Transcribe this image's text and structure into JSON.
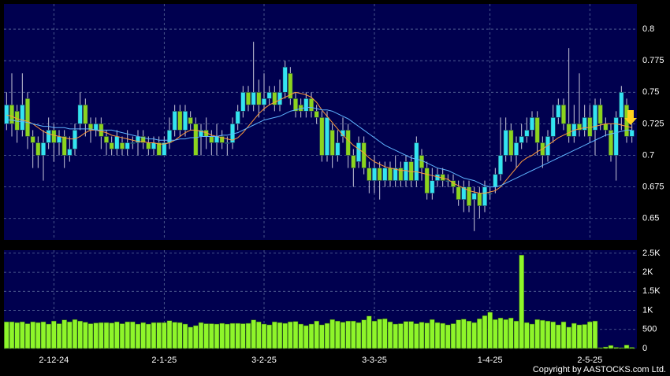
{
  "chart_data": [
    {
      "type": "candlestick",
      "categories": [
        null,
        null,
        null,
        null,
        null,
        null,
        null,
        null,
        null,
        "2-12-24",
        null,
        null,
        null,
        null,
        null,
        null,
        null,
        null,
        null,
        null,
        null,
        null,
        null,
        null,
        null,
        null,
        null,
        null,
        null,
        null,
        "2-1-25",
        null,
        null,
        null,
        null,
        null,
        null,
        null,
        null,
        null,
        null,
        null,
        null,
        null,
        null,
        null,
        null,
        null,
        null,
        "3-2-25",
        null,
        null,
        null,
        null,
        null,
        null,
        null,
        null,
        null,
        null,
        null,
        null,
        null,
        null,
        null,
        null,
        null,
        null,
        null,
        null,
        "3-3-25",
        null,
        null,
        null,
        null,
        null,
        null,
        null,
        null,
        null,
        null,
        null,
        null,
        null,
        null,
        null,
        null,
        null,
        null,
        null,
        null,
        null,
        "1-4-25",
        null,
        null,
        null,
        null,
        null,
        null,
        null,
        null,
        null,
        null,
        null,
        null,
        null,
        null,
        null,
        null,
        null,
        null,
        "2-5-25",
        null,
        null,
        null,
        null,
        null,
        null,
        null,
        null
      ],
      "open": [
        0.725,
        0.74,
        0.735,
        0.72,
        0.745,
        0.715,
        0.71,
        0.7,
        0.71,
        0.72,
        0.71,
        0.715,
        0.7,
        0.705,
        0.725,
        0.74,
        0.725,
        0.72,
        0.725,
        0.715,
        0.71,
        0.705,
        0.71,
        0.705,
        0.71,
        0.71,
        0.715,
        0.71,
        0.705,
        0.71,
        0.7,
        0.71,
        0.72,
        0.735,
        0.72,
        0.73,
        0.725,
        0.715,
        0.72,
        0.715,
        0.71,
        0.715,
        0.71,
        0.71,
        0.725,
        0.735,
        0.75,
        0.74,
        0.75,
        0.74,
        0.745,
        0.75,
        0.74,
        0.75,
        0.765,
        0.745,
        0.74,
        0.735,
        0.745,
        0.735,
        0.73,
        0.7,
        0.72,
        0.7,
        0.715,
        0.72,
        0.7,
        0.695,
        0.71,
        0.69,
        0.68,
        0.69,
        0.68,
        0.69,
        0.68,
        0.69,
        0.68,
        0.695,
        0.68,
        0.7,
        0.69,
        0.67,
        0.68,
        0.685,
        0.68,
        0.68,
        0.675,
        0.665,
        0.675,
        0.665,
        0.67,
        0.66,
        0.67,
        0.675,
        0.685,
        0.7,
        0.72,
        0.7,
        0.71,
        0.715,
        0.72,
        0.73,
        0.71,
        0.7,
        0.715,
        0.73,
        0.74,
        0.725,
        0.715,
        0.725,
        0.72,
        0.73,
        0.72,
        0.74,
        0.725,
        0.72,
        0.7,
        0.73,
        0.74,
        0.715
      ],
      "high": [
        0.75,
        0.765,
        0.74,
        0.765,
        0.75,
        0.72,
        0.715,
        0.72,
        0.73,
        0.725,
        0.72,
        0.72,
        0.715,
        0.725,
        0.75,
        0.745,
        0.73,
        0.73,
        0.73,
        0.72,
        0.715,
        0.72,
        0.715,
        0.72,
        0.715,
        0.72,
        0.72,
        0.715,
        0.715,
        0.715,
        0.715,
        0.73,
        0.74,
        0.74,
        0.74,
        0.735,
        0.73,
        0.725,
        0.73,
        0.72,
        0.725,
        0.72,
        0.715,
        0.73,
        0.74,
        0.755,
        0.755,
        0.79,
        0.76,
        0.765,
        0.755,
        0.755,
        0.76,
        0.775,
        0.77,
        0.75,
        0.745,
        0.75,
        0.75,
        0.74,
        0.735,
        0.735,
        0.725,
        0.72,
        0.73,
        0.725,
        0.705,
        0.715,
        0.715,
        0.695,
        0.7,
        0.695,
        0.695,
        0.695,
        0.7,
        0.695,
        0.7,
        0.7,
        0.715,
        0.705,
        0.695,
        0.69,
        0.69,
        0.69,
        0.685,
        0.685,
        0.68,
        0.68,
        0.68,
        0.675,
        0.675,
        0.68,
        0.675,
        0.69,
        0.73,
        0.73,
        0.725,
        0.715,
        0.725,
        0.73,
        0.735,
        0.735,
        0.715,
        0.72,
        0.74,
        0.745,
        0.745,
        0.785,
        0.74,
        0.765,
        0.74,
        0.74,
        0.745,
        0.745,
        0.73,
        0.725,
        0.735,
        0.755,
        0.745,
        0.725
      ],
      "low": [
        0.72,
        0.715,
        0.71,
        0.715,
        0.705,
        0.69,
        0.69,
        0.68,
        0.705,
        0.695,
        0.7,
        0.69,
        0.695,
        0.7,
        0.72,
        0.715,
        0.71,
        0.715,
        0.705,
        0.7,
        0.7,
        0.7,
        0.7,
        0.7,
        0.705,
        0.7,
        0.705,
        0.7,
        0.7,
        0.7,
        0.7,
        0.705,
        0.715,
        0.715,
        0.715,
        0.72,
        0.7,
        0.7,
        0.705,
        0.7,
        0.7,
        0.705,
        0.7,
        0.705,
        0.72,
        0.73,
        0.735,
        0.735,
        0.73,
        0.735,
        0.74,
        0.735,
        0.735,
        0.745,
        0.74,
        0.73,
        0.73,
        0.73,
        0.73,
        0.725,
        0.695,
        0.695,
        0.69,
        0.695,
        0.71,
        0.69,
        0.675,
        0.69,
        0.685,
        0.67,
        0.67,
        0.665,
        0.675,
        0.675,
        0.675,
        0.675,
        0.675,
        0.675,
        0.675,
        0.68,
        0.665,
        0.665,
        0.675,
        0.675,
        0.675,
        0.67,
        0.66,
        0.655,
        0.655,
        0.64,
        0.65,
        0.655,
        0.665,
        0.67,
        0.68,
        0.695,
        0.695,
        0.69,
        0.705,
        0.71,
        0.715,
        0.7,
        0.69,
        0.695,
        0.71,
        0.725,
        0.72,
        0.71,
        0.71,
        0.715,
        0.715,
        0.71,
        0.7,
        0.72,
        0.715,
        0.695,
        0.68,
        0.72,
        0.71,
        0.71
      ],
      "close": [
        0.74,
        0.725,
        0.72,
        0.74,
        0.715,
        0.71,
        0.7,
        0.71,
        0.72,
        0.71,
        0.715,
        0.7,
        0.705,
        0.72,
        0.74,
        0.725,
        0.72,
        0.725,
        0.715,
        0.71,
        0.705,
        0.715,
        0.705,
        0.71,
        0.71,
        0.715,
        0.71,
        0.705,
        0.71,
        0.7,
        0.71,
        0.72,
        0.735,
        0.72,
        0.735,
        0.725,
        0.7,
        0.72,
        0.715,
        0.71,
        0.715,
        0.71,
        0.71,
        0.725,
        0.735,
        0.75,
        0.74,
        0.75,
        0.74,
        0.745,
        0.75,
        0.74,
        0.75,
        0.77,
        0.745,
        0.735,
        0.735,
        0.745,
        0.735,
        0.73,
        0.7,
        0.73,
        0.7,
        0.71,
        0.72,
        0.7,
        0.69,
        0.71,
        0.69,
        0.68,
        0.69,
        0.68,
        0.69,
        0.68,
        0.69,
        0.68,
        0.695,
        0.68,
        0.71,
        0.69,
        0.67,
        0.68,
        0.685,
        0.68,
        0.68,
        0.675,
        0.665,
        0.675,
        0.66,
        0.67,
        0.66,
        0.675,
        0.67,
        0.685,
        0.7,
        0.72,
        0.7,
        0.71,
        0.715,
        0.72,
        0.73,
        0.71,
        0.7,
        0.715,
        0.73,
        0.74,
        0.725,
        0.715,
        0.725,
        0.72,
        0.73,
        0.715,
        0.74,
        0.725,
        0.72,
        0.7,
        0.73,
        0.75,
        0.715,
        0.72
      ],
      "up_color": "#33e4f2",
      "down_color": "#8cd41e",
      "lines": [
        {
          "color": "#ff9a3c",
          "values": [
            0.732,
            0.731,
            0.729,
            0.728,
            0.727,
            0.725,
            0.722,
            0.719,
            0.717,
            0.716,
            0.715,
            0.714,
            0.713,
            0.713,
            0.715,
            0.718,
            0.72,
            0.72,
            0.719,
            0.718,
            0.716,
            0.715,
            0.714,
            0.713,
            0.712,
            0.711,
            0.711,
            0.71,
            0.71,
            0.709,
            0.709,
            0.71,
            0.712,
            0.715,
            0.718,
            0.72,
            0.72,
            0.719,
            0.718,
            0.716,
            0.715,
            0.714,
            0.713,
            0.712,
            0.714,
            0.718,
            0.723,
            0.728,
            0.733,
            0.737,
            0.74,
            0.742,
            0.744,
            0.746,
            0.748,
            0.75,
            0.749,
            0.748,
            0.746,
            0.742,
            0.736,
            0.731,
            0.726,
            0.721,
            0.716,
            0.712,
            0.708,
            0.705,
            0.702,
            0.698,
            0.695,
            0.693,
            0.691,
            0.69,
            0.689,
            0.688,
            0.688,
            0.687,
            0.687,
            0.686,
            0.685,
            0.684,
            0.683,
            0.682,
            0.681,
            0.678,
            0.676,
            0.674,
            0.672,
            0.671,
            0.67,
            0.67,
            0.671,
            0.672,
            0.675,
            0.68,
            0.685,
            0.69,
            0.695,
            0.698,
            0.7,
            0.703,
            0.705,
            0.708,
            0.711,
            0.714,
            0.716,
            0.718,
            0.72,
            0.721,
            0.722,
            0.722,
            0.723,
            0.724,
            0.725,
            0.725,
            0.725,
            0.724,
            0.723,
            0.722
          ]
        },
        {
          "color": "#5fb4ff",
          "values": [
            0.728,
            0.728,
            0.727,
            0.727,
            0.726,
            0.725,
            0.724,
            0.723,
            0.723,
            0.722,
            0.722,
            0.722,
            0.721,
            0.721,
            0.721,
            0.721,
            0.721,
            0.72,
            0.72,
            0.72,
            0.72,
            0.719,
            0.718,
            0.717,
            0.716,
            0.715,
            0.714,
            0.713,
            0.713,
            0.712,
            0.712,
            0.712,
            0.712,
            0.713,
            0.713,
            0.714,
            0.714,
            0.715,
            0.715,
            0.715,
            0.715,
            0.716,
            0.716,
            0.717,
            0.718,
            0.72,
            0.722,
            0.724,
            0.726,
            0.728,
            0.729,
            0.73,
            0.731,
            0.733,
            0.735,
            0.736,
            0.737,
            0.738,
            0.738,
            0.737,
            0.736,
            0.736,
            0.735,
            0.733,
            0.731,
            0.729,
            0.726,
            0.723,
            0.72,
            0.717,
            0.714,
            0.711,
            0.708,
            0.706,
            0.704,
            0.702,
            0.7,
            0.698,
            0.697,
            0.696,
            0.694,
            0.692,
            0.69,
            0.689,
            0.688,
            0.686,
            0.684,
            0.682,
            0.681,
            0.68,
            0.678,
            0.676,
            0.675,
            0.675,
            0.676,
            0.678,
            0.68,
            0.682,
            0.684,
            0.686,
            0.688,
            0.69,
            0.692,
            0.694,
            0.696,
            0.698,
            0.7,
            0.702,
            0.704,
            0.706,
            0.708,
            0.71,
            0.712,
            0.714,
            0.716,
            0.717,
            0.718,
            0.719,
            0.72,
            0.72
          ]
        }
      ],
      "ylim": [
        0.633,
        0.82
      ],
      "yticks": [
        0.65,
        0.675,
        0.7,
        0.725,
        0.75,
        0.775,
        0.8
      ],
      "grid": true
    },
    {
      "type": "bar",
      "color": "#8ef52a",
      "values": [
        700,
        700,
        680,
        700,
        650,
        700,
        680,
        700,
        640,
        720,
        650,
        750,
        700,
        760,
        720,
        690,
        650,
        670,
        680,
        680,
        670,
        700,
        650,
        700,
        700,
        640,
        680,
        640,
        680,
        680,
        680,
        730,
        690,
        680,
        640,
        560,
        600,
        680,
        650,
        650,
        640,
        660,
        640,
        660,
        660,
        650,
        660,
        750,
        700,
        640,
        620,
        700,
        680,
        660,
        700,
        710,
        640,
        600,
        640,
        720,
        620,
        660,
        760,
        720,
        690,
        720,
        720,
        680,
        750,
        850,
        720,
        770,
        780,
        700,
        640,
        650,
        710,
        710,
        650,
        690,
        670,
        760,
        680,
        660,
        620,
        650,
        750,
        770,
        720,
        680,
        780,
        860,
        950,
        760,
        800,
        760,
        800,
        720,
        2450,
        680,
        640,
        760,
        740,
        720,
        700,
        620,
        700,
        560,
        660,
        620,
        630,
        700,
        720,
        20,
        40,
        80,
        30,
        20,
        90,
        30
      ],
      "ylim": [
        0,
        2580
      ],
      "yticks": [
        0,
        500,
        {
          "value": 1000,
          "label": "1K"
        },
        {
          "value": 1500,
          "label": "1.5K"
        },
        {
          "value": 2000,
          "label": "2K"
        },
        {
          "value": 2500,
          "label": "2.5K"
        }
      ],
      "grid": true
    }
  ],
  "footer": "Copyright by AASTOCKS.com Ltd."
}
